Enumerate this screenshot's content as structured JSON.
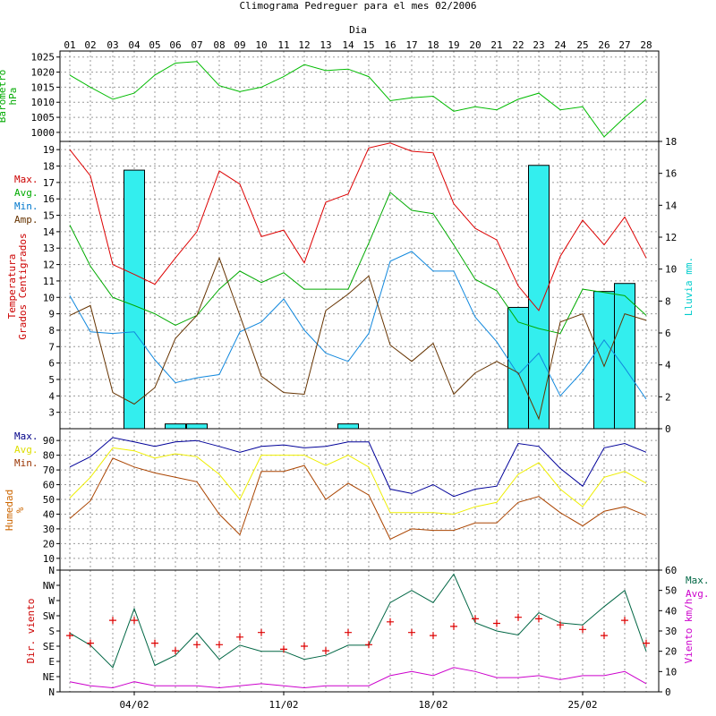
{
  "chart_data": {
    "title": "Climograma Pedreguer para el mes 02/2006",
    "x_axis_label": "Dia",
    "days": [
      "01",
      "02",
      "03",
      "04",
      "05",
      "06",
      "07",
      "08",
      "09",
      "10",
      "11",
      "12",
      "13",
      "14",
      "15",
      "16",
      "17",
      "18",
      "19",
      "20",
      "21",
      "22",
      "23",
      "24",
      "25",
      "26",
      "27",
      "28"
    ],
    "bottom_date_labels": [
      {
        "day": 4,
        "label": "04/02"
      },
      {
        "day": 11,
        "label": "11/02"
      },
      {
        "day": 18,
        "label": "18/02"
      },
      {
        "day": 25,
        "label": "25/02"
      }
    ],
    "panels": [
      {
        "id": "barometer",
        "type": "line",
        "ylabel": [
          "Barometro",
          "hPa"
        ],
        "ylabel_color": "#00aa00",
        "ylim": [
          997,
          1027
        ],
        "yticks": [
          995,
          1000,
          1005,
          1010,
          1015,
          1020,
          1025
        ],
        "series": [
          {
            "color": "#00bb00",
            "values": [
              1019,
              1015,
              1011,
              1013,
              1019,
              1023,
              1023.5,
              1015.5,
              1013.5,
              1015,
              1018.5,
              1022.5,
              1020.5,
              1021,
              1018.5,
              1010.5,
              1011.5,
              1012,
              1007,
              1008.5,
              1007.5,
              1011,
              1013,
              1007.5,
              1008.5,
              998.5,
              1005,
              1011
            ]
          }
        ]
      },
      {
        "id": "temperature",
        "type": "line+bar",
        "ylabel": [
          "Temperatura",
          "Grados Centigrados"
        ],
        "ylabel_color": "#cc0000",
        "ylim": [
          2,
          19.5
        ],
        "yticks": [
          3,
          4,
          5,
          6,
          7,
          8,
          9,
          10,
          11,
          12,
          13,
          14,
          15,
          16,
          17,
          18,
          19
        ],
        "y2label": "Lluvia mm.",
        "y2label_color": "#00cccc",
        "y2lim": [
          0,
          18
        ],
        "y2ticks": [
          0,
          2,
          4,
          6,
          8,
          10,
          12,
          14,
          16,
          18
        ],
        "legend": [
          {
            "name": "Max.",
            "color": "#cc0000"
          },
          {
            "name": "Avg.",
            "color": "#00aa00"
          },
          {
            "name": "Min.",
            "color": "#0077cc"
          },
          {
            "name": "Amp.",
            "color": "#663300"
          }
        ],
        "series": [
          {
            "name": "Max.",
            "color": "#dd0000",
            "values": [
              19,
              17.4,
              12,
              11.4,
              10.8,
              12.4,
              14,
              17.7,
              16.9,
              13.7,
              14.1,
              12.1,
              15.8,
              16.3,
              19.1,
              19.4,
              18.9,
              18.8,
              15.7,
              14.2,
              13.5,
              10.7,
              9.2,
              12.5,
              14.7,
              13.2,
              14.9,
              12.4
            ]
          },
          {
            "name": "Avg.",
            "color": "#00aa00",
            "values": [
              14.4,
              11.9,
              10,
              9.5,
              9,
              8.3,
              8.9,
              10.5,
              11.6,
              10.9,
              11.5,
              10.5,
              10.5,
              10.5,
              13.3,
              16.4,
              15.3,
              15.1,
              13.2,
              11.1,
              10.4,
              8.5,
              8.1,
              7.8,
              10.5,
              10.3,
              10.1,
              8.9
            ]
          },
          {
            "name": "Min.",
            "color": "#1188dd",
            "values": [
              10.1,
              7.9,
              7.8,
              7.9,
              6.2,
              4.8,
              5.1,
              5.3,
              7.9,
              8.5,
              9.9,
              8,
              6.6,
              6.1,
              7.8,
              12.2,
              12.8,
              11.6,
              11.6,
              8.8,
              7.3,
              5.3,
              6.6,
              4,
              5.5,
              7.4,
              5.7,
              3.8
            ]
          },
          {
            "name": "Amp.",
            "color": "#663300",
            "values": [
              8.9,
              9.5,
              4.2,
              3.5,
              4.5,
              7.5,
              8.9,
              12.4,
              8.9,
              5.2,
              4.2,
              4.1,
              9.2,
              10.2,
              11.3,
              7.1,
              6.1,
              7.2,
              4.1,
              5.4,
              6.1,
              5.4,
              2.6,
              8.5,
              9,
              5.8,
              9,
              8.6
            ]
          }
        ],
        "rain": [
          0,
          0,
          0,
          16.2,
          0,
          0.3,
          0.3,
          0,
          0,
          0,
          0,
          0,
          0,
          0.3,
          0,
          0,
          0,
          0,
          0,
          0,
          0,
          7.6,
          16.5,
          0,
          0,
          8.6,
          9.1,
          0
        ],
        "rain_color": "#33eeee"
      },
      {
        "id": "humidity",
        "type": "line",
        "ylabel": [
          "Humedad",
          "%"
        ],
        "ylabel_color": "#cc6600",
        "ylim": [
          2,
          98
        ],
        "yticks": [
          10,
          20,
          30,
          40,
          50,
          60,
          70,
          80,
          90
        ],
        "legend": [
          {
            "name": "Max.",
            "color": "#000088"
          },
          {
            "name": "Avg.",
            "color": "#dddd00"
          },
          {
            "name": "Min.",
            "color": "#993300"
          }
        ],
        "series": [
          {
            "name": "Max.",
            "color": "#000099",
            "values": [
              72,
              79,
              92,
              89,
              86,
              89,
              90,
              86,
              82,
              86,
              87,
              85,
              86,
              89,
              89,
              57,
              54,
              60,
              52,
              57,
              59,
              88,
              86,
              71,
              59,
              85,
              88,
              82
            ]
          },
          {
            "name": "Avg.",
            "color": "#eeee00",
            "values": [
              51,
              65,
              85,
              83,
              78,
              81,
              79,
              67,
              50,
              80,
              80,
              80,
              73,
              80,
              72,
              41,
              41,
              41,
              40,
              45,
              48,
              67,
              75,
              57,
              45,
              65,
              69,
              61
            ]
          },
          {
            "name": "Min.",
            "color": "#aa4400",
            "values": [
              37,
              49,
              78,
              72,
              68,
              65,
              62,
              40,
              26,
              69,
              69,
              73,
              50,
              61,
              53,
              23,
              30,
              29,
              29,
              34,
              34,
              48,
              52,
              41,
              32,
              42,
              45,
              39
            ]
          }
        ]
      },
      {
        "id": "wind",
        "type": "line+scatter",
        "ylabel": [
          "Dir. viento"
        ],
        "ylabel_color": "#cc0000",
        "ylim_dir": [
          0,
          8
        ],
        "ydir_labels": [
          "N",
          "NE",
          "E",
          "SE",
          "S",
          "SW",
          "W",
          "NW",
          "N"
        ],
        "y2label": "Viento km/h",
        "y2label_color": "#cc00cc",
        "y2lim": [
          0,
          60
        ],
        "y2ticks": [
          0,
          10,
          20,
          30,
          40,
          50,
          60
        ],
        "legend": [
          {
            "name": "Max.",
            "color": "#006644"
          },
          {
            "name": "Avg.",
            "color": "#cc00cc"
          }
        ],
        "direction_color": "#dd0000",
        "direction": [
          3.7,
          3.2,
          4.7,
          4.7,
          3.2,
          2.7,
          3.1,
          3.1,
          3.6,
          3.9,
          2.8,
          3,
          2.7,
          3.9,
          3.1,
          4.6,
          3.9,
          3.7,
          4.3,
          4.8,
          4.5,
          4.9,
          4.8,
          4.4,
          4.1,
          3.7,
          4.7,
          3.2
        ],
        "series": [
          {
            "name": "Max.",
            "color": "#006644",
            "values": [
              29,
              23,
              12,
              41,
              13,
              18,
              29,
              16,
              23,
              20,
              20,
              16,
              18,
              23,
              23,
              44,
              50,
              44,
              58,
              34,
              30,
              28,
              39,
              34,
              33,
              42,
              50,
              20
            ]
          },
          {
            "name": "Avg.",
            "color": "#cc00cc",
            "values": [
              5,
              3,
              2,
              5,
              3,
              3,
              3,
              2,
              3,
              4,
              3,
              2,
              3,
              3,
              3,
              8,
              10,
              8,
              12,
              10,
              7,
              7,
              8,
              6,
              8,
              8,
              10,
              4
            ]
          }
        ]
      }
    ]
  }
}
